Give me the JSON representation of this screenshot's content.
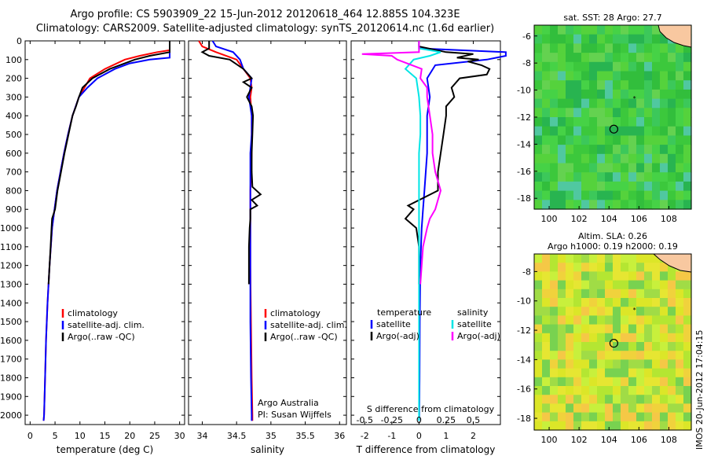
{
  "header": {
    "line1": "Argo profile: CS 5903909_22 15-Jun-2012 20120618_464 12.885S 104.323E",
    "line2": "Climatology: CARS2009. Satellite-adjusted climatology: synTS_20120614.nc (1.6d earlier)"
  },
  "colors": {
    "climatology": "#ff0000",
    "satellite": "#0000ff",
    "argo": "#000000",
    "salinity_sat": "#00e5e5",
    "salinity_argo": "#ff00ff",
    "land": "#f8c8a0"
  },
  "chart_data": [
    {
      "type": "line",
      "name_key": "temperature",
      "xlabel": "temperature (deg C)",
      "xlim": [
        -1,
        31
      ],
      "xticks": [
        0,
        5,
        10,
        15,
        20,
        25,
        30
      ],
      "ylim": [
        2050,
        0
      ],
      "yticks": [
        0,
        100,
        200,
        300,
        400,
        500,
        600,
        700,
        800,
        900,
        1000,
        1100,
        1200,
        1300,
        1400,
        1500,
        1600,
        1700,
        1800,
        1900,
        2000
      ],
      "legend": [
        "climatology",
        "satellite-adj. clim.",
        "Argo(..raw -QC)"
      ],
      "series": [
        {
          "name": "climatology",
          "color": "#ff0000",
          "depth": [
            0,
            50,
            60,
            80,
            100,
            150,
            200,
            300,
            400,
            500,
            600,
            700,
            800,
            900,
            1000,
            1200,
            1400,
            1600,
            1800,
            2000,
            2030
          ],
          "values": [
            28,
            28,
            25.5,
            22,
            19,
            15,
            12,
            9.8,
            8.5,
            7.6,
            6.8,
            6.1,
            5.4,
            4.9,
            4.4,
            3.9,
            3.5,
            3.2,
            3.0,
            2.8,
            2.7
          ]
        },
        {
          "name": "satellite-adj. clim.",
          "color": "#0000ff",
          "depth": [
            0,
            90,
            100,
            120,
            150,
            200,
            250,
            300,
            400,
            500,
            600,
            700,
            800,
            900,
            1000,
            1200,
            1400,
            1600,
            1800,
            2000,
            2030
          ],
          "values": [
            28,
            28,
            24,
            20,
            17,
            13.5,
            11.5,
            9.8,
            8.5,
            7.6,
            6.8,
            6.1,
            5.4,
            4.9,
            4.4,
            3.9,
            3.5,
            3.2,
            3.0,
            2.8,
            2.7
          ]
        },
        {
          "name": "Argo(..raw -QC)",
          "color": "#000000",
          "depth": [
            0,
            60,
            80,
            100,
            150,
            200,
            250,
            300,
            350,
            400,
            500,
            600,
            700,
            800,
            900,
            950,
            1000,
            1100,
            1200,
            1300
          ],
          "values": [
            28,
            28,
            24,
            21,
            16,
            12.5,
            10.5,
            9.8,
            9.2,
            8.5,
            7.7,
            6.9,
            6.2,
            5.5,
            5.0,
            4.4,
            4.3,
            4.1,
            3.9,
            3.7
          ]
        }
      ]
    },
    {
      "type": "line",
      "name_key": "salinity",
      "xlabel": "salinity",
      "xlim": [
        33.8,
        36.1
      ],
      "xticks": [
        34,
        34.5,
        35,
        35.5,
        36
      ],
      "ylim": [
        2050,
        0
      ],
      "legend": [
        "climatology",
        "satellite-adj. clim.",
        "Argo(..raw -QC)"
      ],
      "annotation": [
        "Argo Australia",
        "PI: Susan Wijffels"
      ],
      "series": [
        {
          "name": "climatology",
          "color": "#ff0000",
          "depth": [
            0,
            30,
            60,
            100,
            150,
            200,
            250,
            300,
            400,
            500,
            600,
            800,
            1000,
            1200,
            1500,
            1800,
            2000,
            2030
          ],
          "values": [
            33.95,
            34.0,
            34.2,
            34.5,
            34.6,
            34.7,
            34.72,
            34.7,
            34.72,
            34.72,
            34.72,
            34.7,
            34.7,
            34.7,
            34.71,
            34.72,
            34.73,
            34.73
          ]
        },
        {
          "name": "satellite-adj. clim.",
          "color": "#0000ff",
          "depth": [
            0,
            30,
            60,
            100,
            150,
            200,
            250,
            300,
            400,
            500,
            600,
            800,
            1000,
            1200,
            1500,
            1800,
            2000,
            2030
          ],
          "values": [
            34.15,
            34.2,
            34.45,
            34.55,
            34.6,
            34.72,
            34.7,
            34.68,
            34.72,
            34.72,
            34.7,
            34.7,
            34.7,
            34.7,
            34.7,
            34.71,
            34.72,
            34.72
          ]
        },
        {
          "name": "Argo(..raw -QC)",
          "color": "#000000",
          "depth": [
            0,
            40,
            60,
            80,
            100,
            150,
            200,
            220,
            250,
            300,
            350,
            400,
            500,
            600,
            700,
            780,
            820,
            850,
            880,
            900,
            950,
            1000,
            1100,
            1200,
            1300
          ],
          "values": [
            34.1,
            34.1,
            34.0,
            34.1,
            34.4,
            34.6,
            34.72,
            34.6,
            34.72,
            34.65,
            34.72,
            34.74,
            34.73,
            34.72,
            34.72,
            34.73,
            34.85,
            34.72,
            34.8,
            34.7,
            34.7,
            34.69,
            34.68,
            34.68,
            34.68
          ]
        }
      ]
    },
    {
      "type": "line",
      "name_key": "difference",
      "xlabel": "T difference from climatology",
      "xlabel_top": "S difference from climatology",
      "xlim": [
        -2.5,
        3
      ],
      "xticks": [
        -2,
        -1,
        0,
        1,
        2
      ],
      "xticks_top": [
        -0.5,
        -0.25,
        0,
        0.25,
        0.5
      ],
      "ylim": [
        2050,
        0
      ],
      "legend_temperature": [
        "temperature",
        "satellite",
        "Argo(-adj)"
      ],
      "legend_salinity": [
        "salinity",
        "satellite",
        "Argo(-adj)"
      ],
      "series": [
        {
          "name": "satellite (T)",
          "color": "#0000ff",
          "depth": [
            0,
            40,
            60,
            80,
            100,
            130,
            200,
            300,
            400,
            500,
            600,
            700,
            800,
            900,
            1000,
            1200,
            1500,
            1800,
            2000,
            2030
          ],
          "values": [
            0,
            0,
            3.2,
            3.2,
            2.5,
            0.6,
            0.3,
            0.4,
            0.3,
            0.3,
            0.3,
            0.25,
            0.2,
            0.15,
            0.1,
            0.05,
            0.03,
            0.02,
            0.01,
            0
          ]
        },
        {
          "name": "Argo (T)",
          "color": "#000000",
          "depth": [
            0,
            30,
            60,
            70,
            90,
            100,
            110,
            130,
            150,
            180,
            200,
            250,
            300,
            350,
            400,
            500,
            600,
            700,
            800,
            880,
            900,
            950,
            1000,
            1100,
            1200,
            1300
          ],
          "values": [
            0,
            0,
            1.0,
            2.0,
            1.4,
            2.2,
            1.8,
            2.3,
            2.6,
            2.5,
            1.5,
            1.2,
            1.3,
            1.0,
            1.0,
            0.9,
            0.8,
            0.7,
            0.7,
            -0.4,
            -0.2,
            -0.5,
            -0.1,
            0,
            0,
            0
          ]
        },
        {
          "name": "satellite (S)",
          "color": "#00e5e5",
          "depth": [
            0,
            40,
            60,
            80,
            100,
            150,
            200,
            300,
            400,
            500,
            600,
            800,
            1000,
            1500,
            2000,
            2030
          ],
          "values": [
            0,
            0,
            0.8,
            0.4,
            -0.2,
            -0.5,
            -0.1,
            0,
            0.05,
            0.05,
            0,
            0,
            0,
            0,
            0,
            0
          ]
        },
        {
          "name": "Argo (S)",
          "color": "#ff00ff",
          "depth": [
            0,
            60,
            70,
            80,
            100,
            150,
            200,
            250,
            300,
            400,
            500,
            600,
            700,
            800,
            850,
            900,
            950,
            1000,
            1100,
            1200,
            1300
          ],
          "values": [
            0,
            0,
            -2.1,
            -1.0,
            -0.8,
            0.1,
            0.05,
            0.3,
            0.3,
            0.4,
            0.5,
            0.5,
            0.6,
            0.8,
            0.7,
            0.6,
            0.4,
            0.3,
            0.15,
            0.1,
            0.05
          ]
        }
      ]
    },
    {
      "type": "heatmap",
      "name_key": "sst_map",
      "title": "sat. SST: 28 Argo: 27.7",
      "xlim": [
        99,
        109.5
      ],
      "xticks": [
        100,
        102,
        104,
        106,
        108
      ],
      "ylim": [
        -18.8,
        -5.2
      ],
      "yticks": [
        -6,
        -8,
        -10,
        -12,
        -14,
        -16,
        -18
      ],
      "argo_position": [
        104.323,
        -12.885
      ]
    },
    {
      "type": "heatmap",
      "name_key": "sla_map",
      "title": "Altim. SLA: 0.26",
      "subtitle": "Argo h1000: 0.19 h2000: 0.19",
      "xlim": [
        99,
        109.5
      ],
      "xticks": [
        100,
        102,
        104,
        106,
        108
      ],
      "ylim": [
        -18.8,
        -6.8
      ],
      "yticks": [
        -8,
        -10,
        -12,
        -14,
        -16,
        -18
      ],
      "argo_position": [
        104.323,
        -12.885
      ]
    }
  ],
  "stamp": "IMOS 20-Jun-2012 17:04:15"
}
